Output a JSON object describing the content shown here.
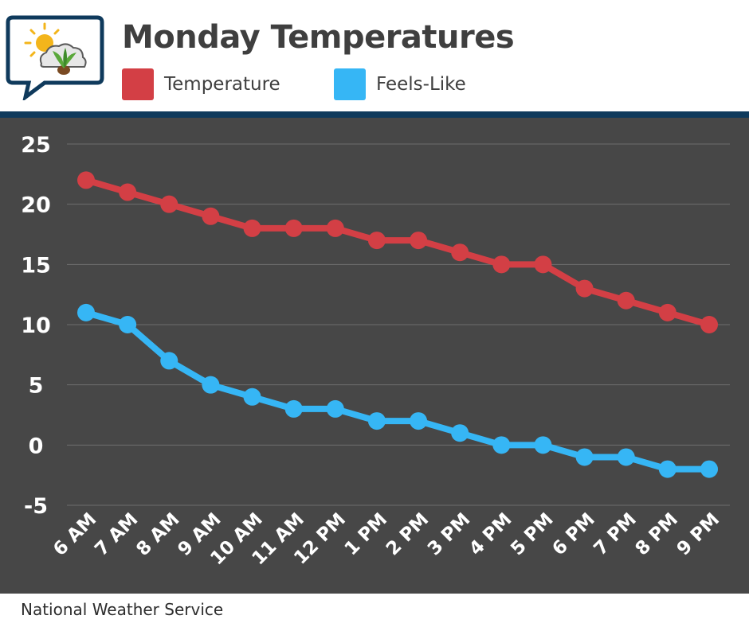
{
  "header": {
    "title": "Monday Temperatures"
  },
  "source": "National Weather Service",
  "colors": {
    "temperature": "#d33f45",
    "feels_like": "#36b6f5",
    "plot_background": "#474747",
    "divider": "#0f3a5c"
  },
  "chart_data": {
    "type": "line",
    "title": "Monday Temperatures",
    "xlabel": "",
    "ylabel": "",
    "categories": [
      "6 AM",
      "7 AM",
      "8 AM",
      "9 AM",
      "10 AM",
      "11 AM",
      "12 PM",
      "1 PM",
      "2 PM",
      "3 PM",
      "4 PM",
      "5 PM",
      "6 PM",
      "7 PM",
      "8 PM",
      "9 PM"
    ],
    "series": [
      {
        "name": "Temperature",
        "color": "#d33f45",
        "values": [
          22,
          21,
          20,
          19,
          18,
          18,
          18,
          17,
          17,
          16,
          15,
          15,
          13,
          12,
          11,
          10
        ]
      },
      {
        "name": "Feels-Like",
        "color": "#36b6f5",
        "values": [
          11,
          10,
          7,
          5,
          4,
          3,
          3,
          2,
          2,
          1,
          0,
          0,
          -1,
          -1,
          -2,
          -2
        ]
      }
    ],
    "ylim": [
      -5,
      25
    ],
    "yticks": [
      "25",
      "20",
      "15",
      "10",
      "5",
      "0",
      "-5"
    ],
    "grid": true,
    "legend_position": "top"
  }
}
